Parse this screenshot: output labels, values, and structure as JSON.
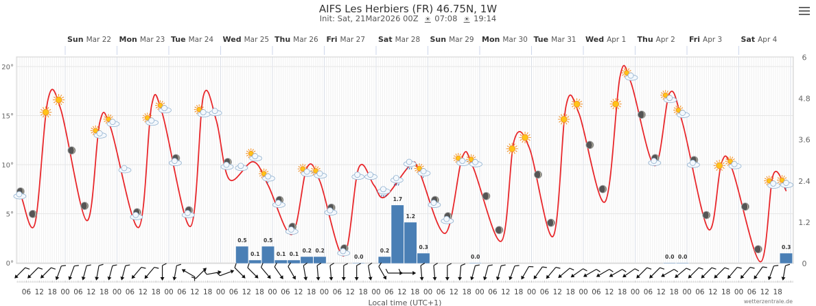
{
  "header": {
    "title": "AIFS Les Herbiers (FR) 46.75N, 1W",
    "init": "Init: Sat, 21Mar2026 00Z",
    "sunrise": "07:08",
    "sunset": "19:14"
  },
  "footer": {
    "xlabel": "Local time (UTC+1)",
    "credit": "wetterzentrale.de"
  },
  "colors": {
    "temp_line": "#e8262a",
    "precip_bar": "#4a7fb5",
    "grid": "#e6e6e6"
  },
  "chart_data": {
    "type": "line+bar",
    "days": [
      {
        "dow": "Sun",
        "date": "Mar 22",
        "hours": 24
      },
      {
        "dow": "Mon",
        "date": "Mar 23",
        "hours": 48
      },
      {
        "dow": "Tue",
        "date": "Mar 24",
        "hours": 72
      },
      {
        "dow": "Wed",
        "date": "Mar 25",
        "hours": 96
      },
      {
        "dow": "Thu",
        "date": "Mar 26",
        "hours": 120
      },
      {
        "dow": "Fri",
        "date": "Mar 27",
        "hours": 144
      },
      {
        "dow": "Sat",
        "date": "Mar 28",
        "hours": 168
      },
      {
        "dow": "Sun",
        "date": "Mar 29",
        "hours": 192
      },
      {
        "dow": "Mon",
        "date": "Mar 30",
        "hours": 216
      },
      {
        "dow": "Tue",
        "date": "Mar 31",
        "hours": 240
      },
      {
        "dow": "Wed",
        "date": "Apr 1",
        "hours": 264
      },
      {
        "dow": "Thu",
        "date": "Apr 2",
        "hours": 288
      },
      {
        "dow": "Fri",
        "date": "Apr 3",
        "hours": 312
      },
      {
        "dow": "Sat",
        "date": "Apr 4",
        "hours": 336
      }
    ],
    "hour_ticks": [
      "06",
      "12",
      "18",
      "00"
    ],
    "xlim_hours": [
      1.5,
      361.5
    ],
    "y_left": {
      "min": 0,
      "max": 20,
      "ticks": [
        "0°",
        "5°",
        "10°",
        "15°",
        "20°"
      ]
    },
    "y_right": {
      "min": 0,
      "max": 6,
      "ticks": [
        "0",
        "1.2",
        "2.4",
        "3.6",
        "4.8",
        "6"
      ]
    },
    "temperature": {
      "name": "Temperature",
      "points": [
        [
          4,
          6.5
        ],
        [
          10,
          4.0
        ],
        [
          16,
          16.6
        ],
        [
          22,
          15.6
        ],
        [
          34,
          4.3
        ],
        [
          40,
          14.3
        ],
        [
          45,
          13.8
        ],
        [
          58,
          3.6
        ],
        [
          64,
          16.0
        ],
        [
          69,
          15.2
        ],
        [
          82,
          3.7
        ],
        [
          88,
          17.0
        ],
        [
          94,
          14.5
        ],
        [
          100,
          8.5
        ],
        [
          111,
          10.3
        ],
        [
          118,
          7.9
        ],
        [
          129,
          2.9
        ],
        [
          136,
          9.7
        ],
        [
          142,
          8.3
        ],
        [
          153,
          0.7
        ],
        [
          160,
          9.7
        ],
        [
          167,
          7.9
        ],
        [
          172,
          6.7
        ],
        [
          184,
          10.0
        ],
        [
          188,
          9.3
        ],
        [
          200,
          3.0
        ],
        [
          208,
          10.8
        ],
        [
          213,
          9.7
        ],
        [
          226,
          2.2
        ],
        [
          232,
          12.5
        ],
        [
          239,
          11.7
        ],
        [
          250,
          2.7
        ],
        [
          256,
          16.0
        ],
        [
          262,
          15.2
        ],
        [
          274,
          6.2
        ],
        [
          281,
          19.0
        ],
        [
          286,
          18.4
        ],
        [
          297,
          9.9
        ],
        [
          304,
          17.3
        ],
        [
          310,
          14.2
        ],
        [
          322,
          3.4
        ],
        [
          328,
          10.2
        ],
        [
          333,
          9.5
        ],
        [
          346,
          0.1
        ],
        [
          352,
          9.0
        ],
        [
          358,
          7.3
        ]
      ]
    },
    "precipitation": {
      "name": "Precipitation (6h)",
      "bars": [
        {
          "hours": 106,
          "value": 0.5,
          "label": "0.5"
        },
        {
          "hours": 112,
          "value": 0.1,
          "label": "0.1"
        },
        {
          "hours": 118,
          "value": 0.5,
          "label": "0.5"
        },
        {
          "hours": 124,
          "value": 0.1,
          "label": "0.1"
        },
        {
          "hours": 130,
          "value": 0.1,
          "label": "0.1"
        },
        {
          "hours": 136,
          "value": 0.2,
          "label": "0.2"
        },
        {
          "hours": 142,
          "value": 0.2,
          "label": "0.2"
        },
        {
          "hours": 160,
          "value": 0.0,
          "label": "0.0"
        },
        {
          "hours": 172,
          "value": 0.2,
          "label": "0.2"
        },
        {
          "hours": 178,
          "value": 1.7,
          "label": "1.7"
        },
        {
          "hours": 184,
          "value": 1.2,
          "label": "1.2"
        },
        {
          "hours": 190,
          "value": 0.3,
          "label": "0.3"
        },
        {
          "hours": 214,
          "value": 0.0,
          "label": "0.0"
        },
        {
          "hours": 304,
          "value": 0.0,
          "label": "0.0"
        },
        {
          "hours": 310,
          "value": 0.0,
          "label": "0.0"
        },
        {
          "hours": 358,
          "value": 0.3,
          "label": "0.3"
        }
      ]
    },
    "weather_icons": [
      "moon-cloud",
      "moon",
      "sun",
      "sun",
      "moon",
      "moon",
      "sun-cloud",
      "sun-cloud",
      "cloud",
      "moon-cloud",
      "sun-cloud",
      "sun-cloud",
      "moon-cloud",
      "moon-cloud",
      "sun-cloud",
      "cloud",
      "moon-cloud",
      "cloud",
      "sun-cloud",
      "sun-rain",
      "moon-cloud",
      "moon-cloud",
      "sun-cloud",
      "sun-cloud",
      "moon-cloud",
      "moon-cloud",
      "cloud",
      "cloud",
      "cloud-rain",
      "cloud-rain",
      "cloud-rain",
      "sun-rain",
      "moon-cloud",
      "moon-cloud",
      "sun-cloud",
      "sun-cloud",
      "moon",
      "moon",
      "sun",
      "sun",
      "moon",
      "moon",
      "sun",
      "sun",
      "moon",
      "moon",
      "sun",
      "sun-cloud",
      "moon",
      "moon-cloud",
      "sun-cloud",
      "sun-cloud",
      "moon-cloud",
      "moon",
      "sun",
      "sun-cloud",
      "moon",
      "moon",
      "sun-cloud",
      "sun-rain"
    ],
    "wind_from_deg": [
      45,
      45,
      45,
      20,
      20,
      15,
      10,
      15,
      15,
      40,
      40,
      0,
      10,
      120,
      225,
      260,
      250,
      315,
      315,
      320,
      325,
      330,
      350,
      355,
      355,
      0,
      0,
      350,
      330,
      270,
      270,
      355,
      355,
      0,
      5,
      15,
      15,
      15,
      20,
      30,
      35,
      40,
      50,
      55,
      60,
      60,
      60,
      55,
      45,
      45,
      60,
      50,
      45,
      45,
      45,
      40,
      40,
      35,
      20,
      10
    ]
  }
}
